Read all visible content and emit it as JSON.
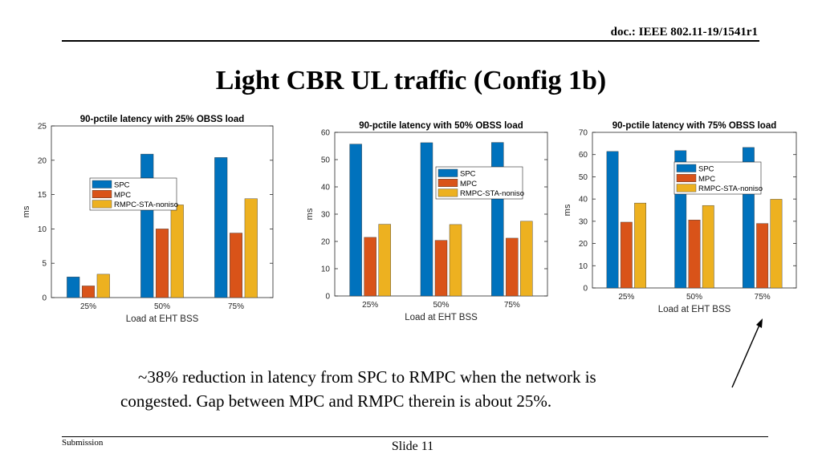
{
  "header": {
    "doc_id": "doc.: IEEE 802.11-19/1541r1"
  },
  "title": "Light CBR UL traffic (Config 1b)",
  "colors": {
    "SPC": "#0072BD",
    "MPC": "#D95319",
    "RMPC-STA-noniso": "#EDB120"
  },
  "chart_data": [
    {
      "type": "bar",
      "title": "90-pctile latency with 25% OBSS load",
      "xlabel": "Load at EHT BSS",
      "ylabel": "ms",
      "categories": [
        "25%",
        "50%",
        "75%"
      ],
      "ylim": [
        0,
        25
      ],
      "yticks": [
        0,
        5,
        10,
        15,
        20,
        25
      ],
      "legend_position": "center-left",
      "series": [
        {
          "name": "SPC",
          "values": [
            3.0,
            20.9,
            20.4
          ]
        },
        {
          "name": "MPC",
          "values": [
            1.7,
            10.0,
            9.4
          ]
        },
        {
          "name": "RMPC-STA-noniso",
          "values": [
            3.4,
            13.5,
            14.4
          ]
        }
      ]
    },
    {
      "type": "bar",
      "title": "90-pctile latency with 50% OBSS load",
      "xlabel": "Load at EHT BSS",
      "ylabel": "ms",
      "categories": [
        "25%",
        "50%",
        "75%"
      ],
      "ylim": [
        0,
        60
      ],
      "yticks": [
        0,
        10,
        20,
        30,
        40,
        50,
        60
      ],
      "legend_position": "center-right",
      "series": [
        {
          "name": "SPC",
          "values": [
            55.7,
            56.2,
            56.3
          ]
        },
        {
          "name": "MPC",
          "values": [
            21.5,
            20.4,
            21.2
          ]
        },
        {
          "name": "RMPC-STA-noniso",
          "values": [
            26.3,
            26.2,
            27.4
          ]
        }
      ]
    },
    {
      "type": "bar",
      "title": "90-pctile latency with 75% OBSS load",
      "xlabel": "Load at EHT BSS",
      "ylabel": "ms",
      "categories": [
        "25%",
        "50%",
        "75%"
      ],
      "ylim": [
        0,
        70
      ],
      "yticks": [
        0,
        10,
        20,
        30,
        40,
        50,
        60,
        70
      ],
      "legend_position": "top-right",
      "series": [
        {
          "name": "SPC",
          "values": [
            61.4,
            61.8,
            63.2
          ]
        },
        {
          "name": "MPC",
          "values": [
            29.6,
            30.6,
            29.0
          ]
        },
        {
          "name": "RMPC-STA-noniso",
          "values": [
            38.2,
            37.1,
            39.9
          ]
        }
      ]
    }
  ],
  "caption": {
    "line1": "~38% reduction in latency from SPC to RMPC when the network is",
    "line2": "congested. Gap between MPC and RMPC therein is about 25%."
  },
  "footer": {
    "left": "Submission",
    "center": "Slide 11"
  }
}
